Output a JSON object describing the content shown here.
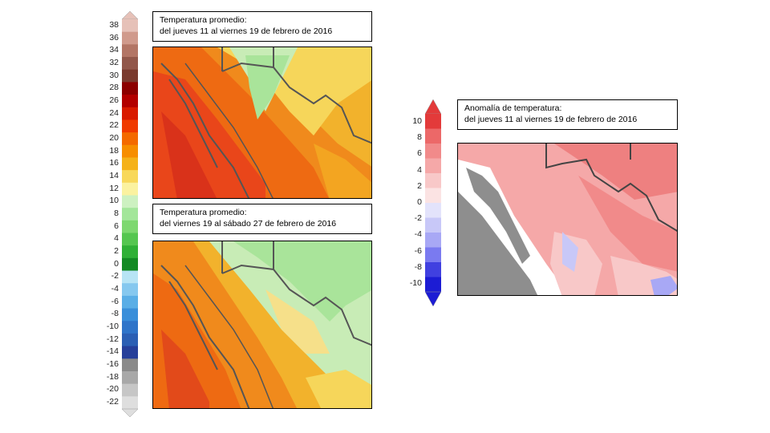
{
  "colorbar_temperature": {
    "labels": [
      "38",
      "36",
      "34",
      "32",
      "30",
      "28",
      "26",
      "24",
      "22",
      "20",
      "18",
      "16",
      "14",
      "12",
      "10",
      "8",
      "6",
      "4",
      "2",
      "0",
      "-2",
      "-4",
      "-6",
      "-8",
      "-10",
      "-12",
      "-14",
      "-16",
      "-18",
      "-20",
      "-22"
    ],
    "colors": [
      "#e6c1b8",
      "#d09a8c",
      "#b37565",
      "#92574a",
      "#7a3a2e",
      "#8c0000",
      "#b30000",
      "#d91a00",
      "#f03a00",
      "#f46a00",
      "#f78e00",
      "#f5b21a",
      "#f8d85a",
      "#fbf2a0",
      "#cdf1c1",
      "#a3e69a",
      "#7ed870",
      "#55c650",
      "#2fb036",
      "#138a23",
      "#b7e4f5",
      "#86c8ef",
      "#5aaee6",
      "#3a8fda",
      "#2f74c9",
      "#2b5fb4",
      "#263f9a",
      "#8a8a8a",
      "#a8a8a8",
      "#c6c6c6",
      "#dedede"
    ]
  },
  "colorbar_anomaly": {
    "labels": [
      "10",
      "8",
      "6",
      "4",
      "2",
      "0",
      "-2",
      "-4",
      "-6",
      "-8",
      "-10"
    ],
    "colors": [
      "#e33a3a",
      "#ec6868",
      "#f18a8a",
      "#f5a8a8",
      "#f8c8c8",
      "#fbe3e3",
      "#e3e3fb",
      "#c8c8f8",
      "#a8a8f5",
      "#7a7af0",
      "#4040e0",
      "#1c1cd4"
    ]
  },
  "panels": {
    "week1": {
      "line1": "Temperatura promedio:",
      "line2": "del jueves 11 al viernes 19 de febrero de 2016"
    },
    "week2": {
      "line1": "Temperatura promedio:",
      "line2": "del viernes 19 al sábado 27 de febrero de 2016"
    },
    "anomaly": {
      "line1": "Anomalía de temperatura:",
      "line2": "del jueves 11 al viernes 19 de febrero de 2016"
    }
  }
}
